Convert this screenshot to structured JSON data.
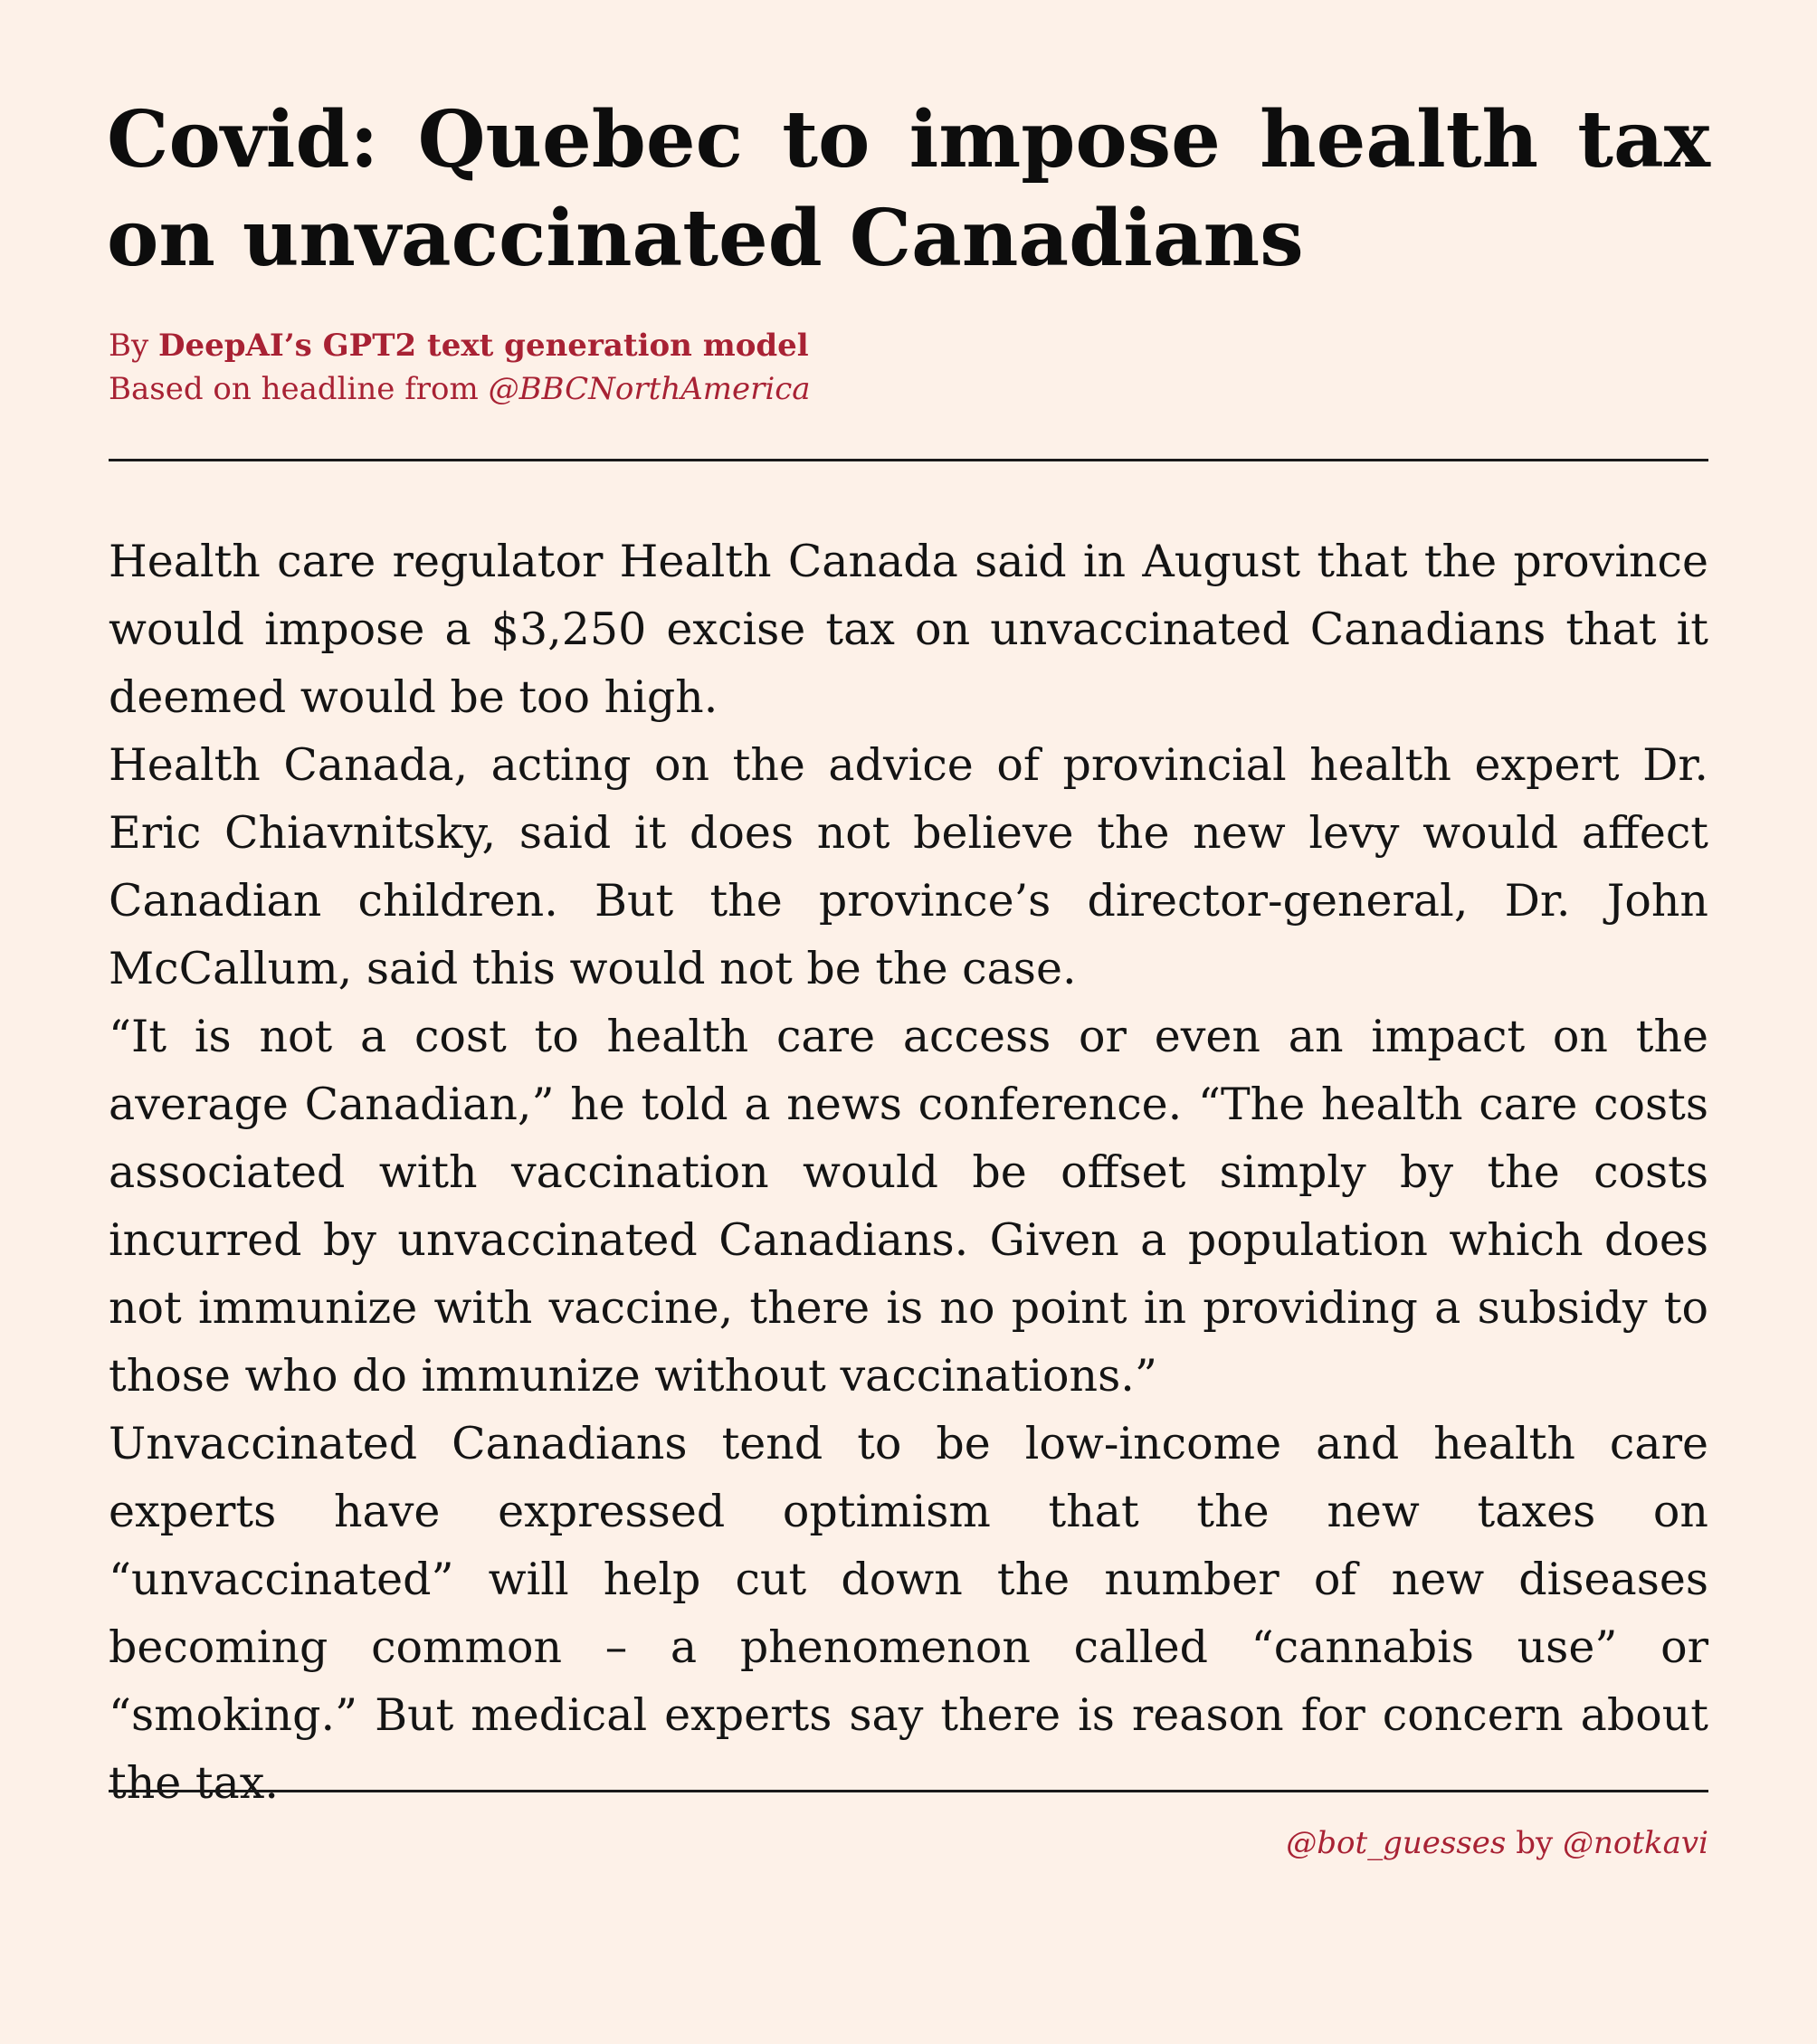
{
  "article": {
    "headline": "Covid: Quebec to impose health tax on unvaccinated Canadians",
    "byline": {
      "by_prefix": "By",
      "author": "DeepAI’s GPT2 text generation model",
      "source_prefix": "Based on headline from",
      "source_handle": "@BBCNorthAmerica"
    },
    "paragraphs": [
      "Health care regulator Health Canada said in August that the province would impose a $3,250 excise tax on unvaccinated Canadians that it deemed would be too high.",
      "Health Canada, acting on the advice of provincial health expert Dr. Eric Chiavnitsky, said it does not believe the new levy would affect Canadian children. But the province’s director-general, Dr. John McCallum, said this would not be the case.",
      "“It is not a cost to health care access or even an impact on the average Canadian,” he told a news conference. “The health care costs associated with vaccination would be offset simply by the costs incurred by unvaccinated Canadians. Given a population which does not immunize with vaccine, there is no point in providing a subsidy to those who do immunize without vaccinations.”",
      "Unvaccinated Canadians tend to be low-income and health care experts have expressed optimism that the new taxes on “unvaccinated” will help cut down the number of new diseases becoming common – a phenomenon called “cannabis use” or “smoking.” But medical experts say there is reason for concern about the tax."
    ]
  },
  "footer": {
    "bot_handle": "@bot_guesses",
    "by_word": "by",
    "author_handle": "@notkavi"
  },
  "colors": {
    "background": "#fdf1e8",
    "accent": "#a82234",
    "text": "#0d0d0d"
  }
}
